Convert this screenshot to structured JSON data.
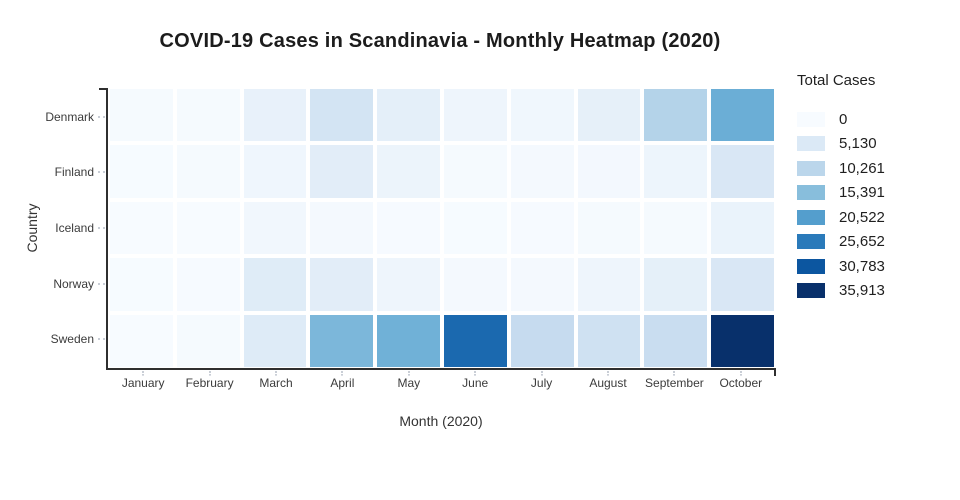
{
  "title": "COVID-19 Cases in Scandinavia - Monthly Heatmap (2020)",
  "chart_data": {
    "type": "heatmap",
    "x": [
      "January",
      "February",
      "March",
      "April",
      "May",
      "June",
      "July",
      "August",
      "September",
      "October"
    ],
    "y": [
      "Denmark",
      "Finland",
      "Iceland",
      "Norway",
      "Sweden"
    ],
    "xlabel": "Month (2020)",
    "ylabel": "Country",
    "vmin": 0,
    "vmax": 35913,
    "colorscale": "Blues",
    "grid": false,
    "legend_position": "right",
    "values": [
      [
        300,
        400,
        2700,
        6500,
        3400,
        1600,
        1200,
        3100,
        11000,
        18000
      ],
      [
        100,
        350,
        1400,
        3800,
        2000,
        400,
        550,
        800,
        1800,
        5500
      ],
      [
        50,
        80,
        1000,
        600,
        200,
        100,
        150,
        300,
        400,
        2300
      ],
      [
        100,
        200,
        4300,
        3800,
        1600,
        550,
        600,
        1600,
        3200,
        5500
      ],
      [
        20,
        350,
        4400,
        16500,
        17500,
        28000,
        9000,
        7300,
        8400,
        35913
      ]
    ]
  },
  "legend": {
    "title": "Total Cases",
    "ticks": [
      {
        "value": 0,
        "label": "0"
      },
      {
        "value": 5130,
        "label": "5,130"
      },
      {
        "value": 10261,
        "label": "10,261"
      },
      {
        "value": 15391,
        "label": "15,391"
      },
      {
        "value": 20522,
        "label": "20,522"
      },
      {
        "value": 25652,
        "label": "25,652"
      },
      {
        "value": 30783,
        "label": "30,783"
      },
      {
        "value": 35913,
        "label": "35,913"
      }
    ]
  },
  "colors": {
    "blues_stops": [
      "#f7fbff",
      "#deebf7",
      "#c6dbef",
      "#9ecae1",
      "#6baed6",
      "#4292c6",
      "#2171b5",
      "#08519c",
      "#08306b"
    ],
    "axis_line": "#2f2f2f",
    "tick": "#c9ced6",
    "label_text": "#3b3b3b",
    "title_text": "#1c1c1c",
    "background": "#ffffff"
  }
}
